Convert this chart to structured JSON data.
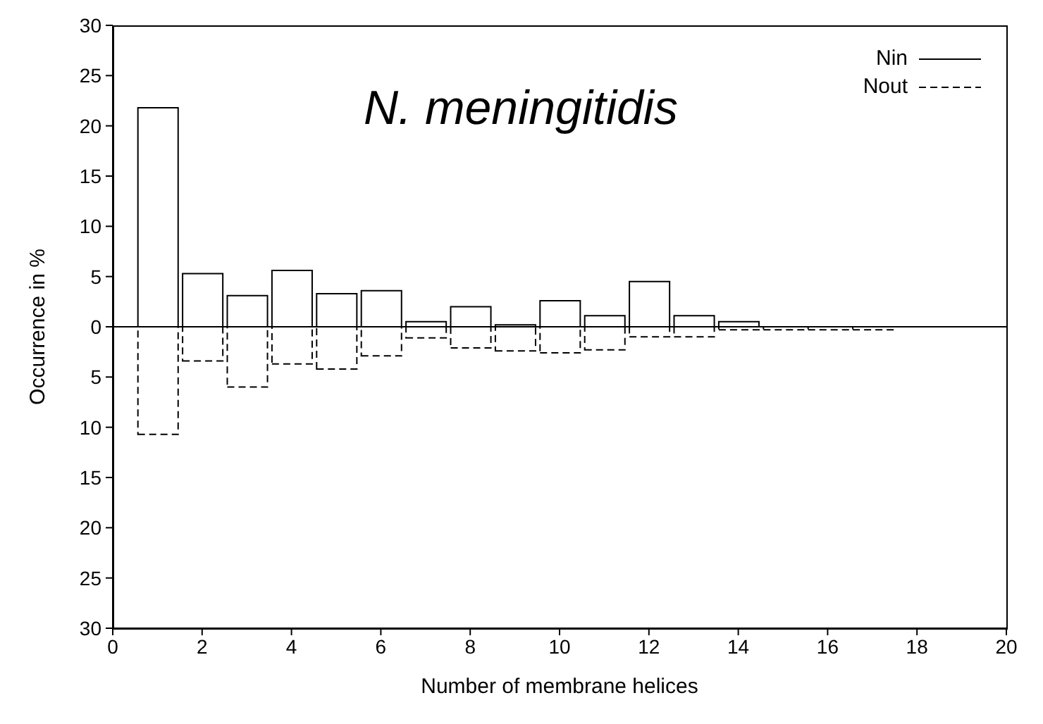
{
  "chart_data": {
    "type": "histogram",
    "title": "N. meningitidis",
    "xlabel": "Number of membrane helices",
    "ylabel": "Occurrence in %",
    "bins": [
      0.5,
      1.5,
      2.5,
      3.5,
      4.5,
      5.5,
      6.5,
      7.5,
      8.5,
      9.5,
      10.5,
      11.5,
      12.5,
      13.5,
      14.5,
      15.5,
      16.5,
      17.5
    ],
    "series": [
      {
        "name": "Nin",
        "color": "#000000",
        "line_style": "solid",
        "values": [
          21.8,
          5.3,
          3.1,
          5.6,
          3.3,
          3.6,
          0.5,
          2.0,
          0.2,
          2.6,
          1.1,
          4.5,
          1.1,
          0.5,
          0,
          0,
          0
        ]
      },
      {
        "name": "Nout",
        "color": "#000000",
        "line_style": "dashed",
        "values": [
          -10.7,
          -3.4,
          -6.0,
          -3.7,
          -4.2,
          -2.9,
          -1.1,
          -2.1,
          -2.4,
          -2.6,
          -2.3,
          -1.0,
          -1.0,
          -0.3,
          -0.3,
          -0.3,
          -0.3
        ]
      }
    ],
    "xlim": [
      0,
      20
    ],
    "xticks": [
      0,
      2,
      4,
      6,
      8,
      10,
      12,
      14,
      16,
      18,
      20
    ],
    "ylim": [
      -30,
      30
    ],
    "yticks": [
      {
        "value": -30,
        "label": "30"
      },
      {
        "value": -25,
        "label": "25"
      },
      {
        "value": -20,
        "label": "20"
      },
      {
        "value": -15,
        "label": "15"
      },
      {
        "value": -10,
        "label": "10"
      },
      {
        "value": -5,
        "label": "5"
      },
      0,
      5,
      10,
      15,
      20,
      25,
      30
    ],
    "ref_lines": [
      {
        "axis": "y",
        "value": 0,
        "color": "#000000",
        "line_style": "solid"
      }
    ],
    "legend": "top right"
  }
}
